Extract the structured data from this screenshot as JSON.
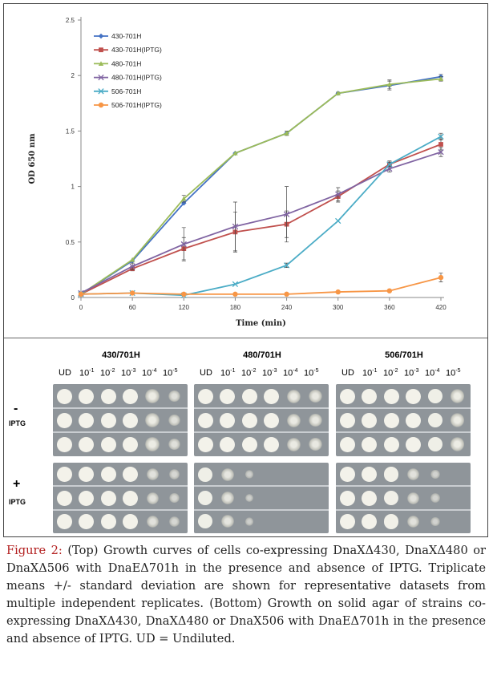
{
  "chart_data": {
    "type": "line",
    "x": [
      0,
      60,
      120,
      180,
      240,
      300,
      360,
      420
    ],
    "xlabel": "Time (min)",
    "ylabel": "OD 650 nm",
    "xlim": [
      0,
      420
    ],
    "ylim": [
      0,
      2.5
    ],
    "yticks": [
      "0",
      "0.5",
      "1",
      "1.5",
      "2",
      "2.5"
    ],
    "xticks": [
      "0",
      "60",
      "120",
      "180",
      "240",
      "300",
      "360",
      "420"
    ],
    "legend_position": "top-left",
    "series": [
      {
        "name": "430-701H",
        "color": "#4472c4",
        "marker": "diamond",
        "values": [
          0.03,
          0.33,
          0.85,
          1.3,
          1.48,
          1.84,
          1.91,
          1.99
        ],
        "errors": [
          0,
          0,
          0,
          0,
          0,
          0,
          0.04,
          0.02
        ]
      },
      {
        "name": "430-701H(IPTG)",
        "color": "#c0504d",
        "marker": "square",
        "values": [
          0.03,
          0.26,
          0.44,
          0.59,
          0.66,
          0.91,
          1.2,
          1.38
        ],
        "errors": [
          0,
          0.02,
          0.1,
          0.18,
          0.12,
          0.05,
          0.03,
          0.05
        ]
      },
      {
        "name": "480-701H",
        "color": "#9bbb59",
        "marker": "triangle",
        "values": [
          0.03,
          0.34,
          0.89,
          1.3,
          1.48,
          1.84,
          1.92,
          1.97
        ],
        "errors": [
          0,
          0,
          0.03,
          0,
          0.02,
          0.01,
          0.04,
          0.02
        ]
      },
      {
        "name": "480-701H(IPTG)",
        "color": "#8064a2",
        "marker": "x",
        "values": [
          0.04,
          0.28,
          0.48,
          0.64,
          0.75,
          0.93,
          1.16,
          1.31
        ],
        "errors": [
          0,
          0.03,
          0.15,
          0.22,
          0.25,
          0.06,
          0.03,
          0.04
        ]
      },
      {
        "name": "506-701H",
        "color": "#4bacc6",
        "marker": "x",
        "values": [
          0.03,
          0.04,
          0.02,
          0.12,
          0.29,
          0.69,
          1.2,
          1.45
        ],
        "errors": [
          0,
          0,
          0,
          0,
          0.02,
          0,
          0.02,
          0.03
        ]
      },
      {
        "name": "506-701H(IPTG)",
        "color": "#f79646",
        "marker": "circle",
        "values": [
          0.03,
          0.04,
          0.03,
          0.03,
          0.03,
          0.05,
          0.06,
          0.18
        ],
        "errors": [
          0,
          0,
          0,
          0,
          0,
          0,
          0,
          0.04
        ]
      }
    ]
  },
  "plates": {
    "strains": [
      "430/701H",
      "480/701H",
      "506/701H"
    ],
    "dilutions": [
      "UD",
      "10-1",
      "10-2",
      "10-3",
      "10-4",
      "10-5"
    ],
    "minus_label": "-",
    "plus_label": "+",
    "iptg_label": "IPTG"
  },
  "caption": {
    "label": "Figure 2:",
    "text": " (Top) Growth curves of cells co-expressing DnaXΔ430, DnaXΔ480 or DnaXΔ506 with DnaEΔ701h in the presence and absence of IPTG. Triplicate means +/- standard deviation are shown for representative datasets from multiple independent replicates. (Bottom) Growth on solid agar of strains co-expressing DnaXΔ430, DnaXΔ480 or DnaX506 with DnaEΔ701h in the presence and absence of IPTG. UD = Undiluted."
  }
}
